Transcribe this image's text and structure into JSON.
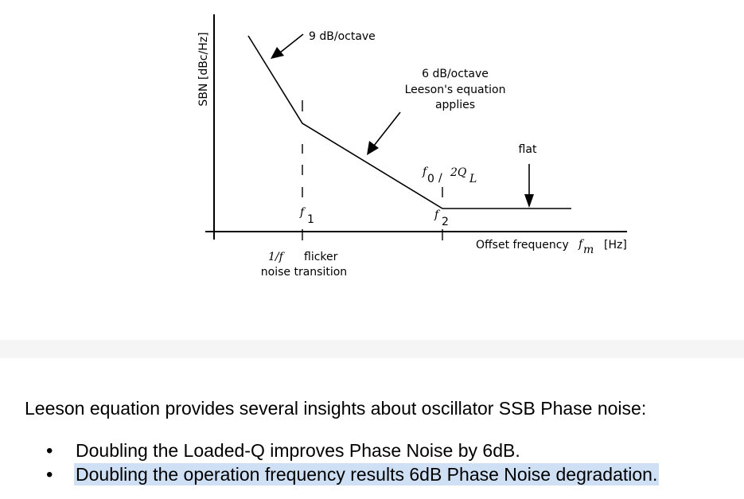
{
  "figure": {
    "y_axis_label": "SBN [dBc/Hz]",
    "x_axis_label": "Offset frequency",
    "x_axis_symbol": "f",
    "x_axis_symbol_sub": "m",
    "x_axis_unit": "[Hz]",
    "annotations": {
      "slope_9db": "9 dB/octave",
      "slope_6db_line1": "6 dB/octave",
      "slope_6db_line2": "Leeson's equation",
      "slope_6db_line3": "applies",
      "flat": "flat",
      "f0_symbol": "f",
      "f0_sub": "0",
      "f0_divider": "/",
      "f0_denominator": "2Q",
      "f0_denominator_sub": "L",
      "f1_symbol": "f",
      "f1_sub": "1",
      "f2_symbol": "f",
      "f2_sub": "2",
      "flicker_line1_symbol": "1/f",
      "flicker_line1_text": "flicker",
      "flicker_line2": "noise transition"
    }
  },
  "text": {
    "intro": "Leeson equation provides several insights about oscillator SSB Phase noise:",
    "bullets": [
      {
        "text": "Doubling the Loaded-Q improves Phase Noise by 6dB.",
        "highlighted": false
      },
      {
        "text": "Doubling the operation frequency results 6dB Phase Noise degradation.",
        "highlighted": true
      }
    ],
    "highlight_color": "#cfe0f5",
    "bullet_glyph": "•"
  }
}
